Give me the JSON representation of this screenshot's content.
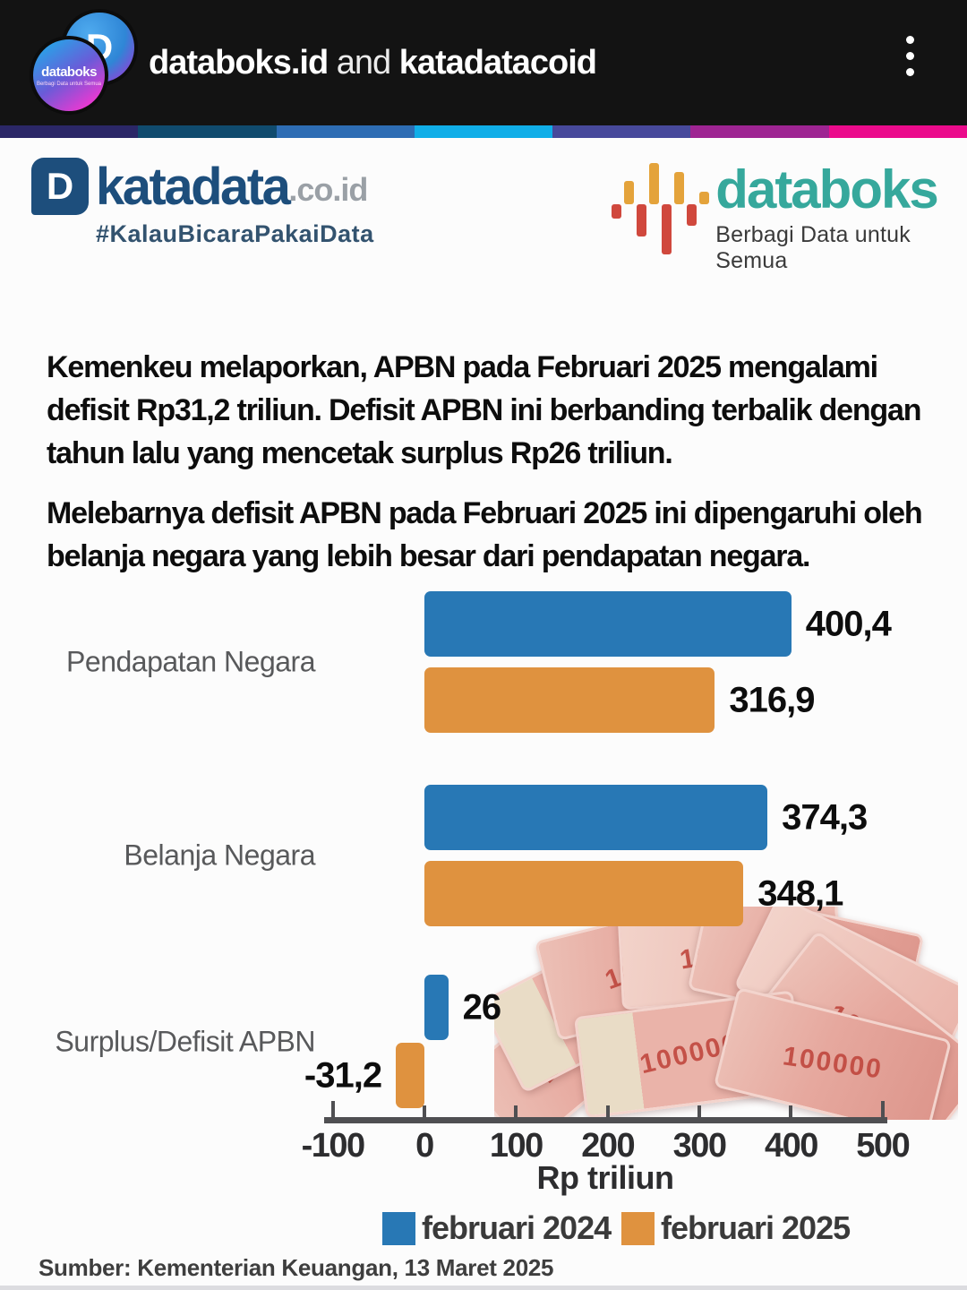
{
  "header": {
    "title_account1": "databoks.id",
    "title_connector": " and ",
    "title_account2": "katadatacoid",
    "avatar_back_letter": "D",
    "avatar_front_name": "databoks",
    "avatar_front_tagline": "Berbagi Data untuk Semua"
  },
  "stripe_colors": [
    "#2b2767",
    "#104b6e",
    "#2e6db4",
    "#10aee8",
    "#47499b",
    "#9e2492",
    "#eb0b8c"
  ],
  "brand": {
    "katadata": {
      "icon_letter": "D",
      "name": "katadata",
      "tld": ".co.id",
      "tagline": "#KalauBicaraPakaiData"
    },
    "databoks": {
      "name": "databoks",
      "tagline": "Berbagi Data untuk Semua"
    }
  },
  "intro": {
    "p1": "Kemenkeu melaporkan, APBN pada Februari 2025 mengalami defisit Rp31,2 triliun. Defisit APBN  ini berbanding terbalik dengan tahun lalu yang mencetak surplus Rp26 triliun.",
    "p2": "Melebarnya defisit APBN pada Februari 2025 ini dipengaruhi oleh belanja negara yang lebih besar dari pendapatan negara."
  },
  "chart_data": {
    "type": "bar",
    "orientation": "horizontal",
    "categories": [
      "Pendapatan Negara",
      "Belanja Negara",
      "Surplus/Defisit APBN"
    ],
    "series": [
      {
        "name": "februari 2024",
        "color": "#2878b5",
        "values": [
          400.4,
          374.3,
          26
        ]
      },
      {
        "name": "februari 2025",
        "color": "#df923f",
        "values": [
          316.9,
          348.1,
          -31.2
        ]
      }
    ],
    "value_labels": [
      [
        "400,4",
        "374,3",
        "26"
      ],
      [
        "316,9",
        "348,1",
        "-31,2"
      ]
    ],
    "xlabel": "Rp triliun",
    "x_ticks": [
      "-100",
      "0",
      "100",
      "200",
      "300",
      "400",
      "500"
    ],
    "xlim": [
      -100,
      500
    ],
    "legend_position": "bottom",
    "grid": false
  },
  "money_label": "100000",
  "source": "Sumber: Kementerian Keuangan, 13 Maret 2025"
}
